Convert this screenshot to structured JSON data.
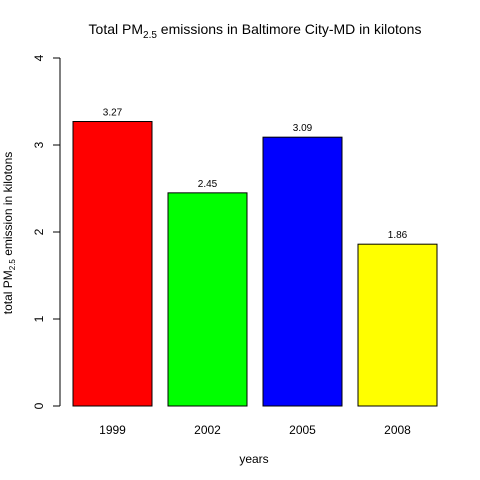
{
  "chart_data": {
    "type": "bar",
    "title": {
      "prefix": "Total PM",
      "subscript": "2.5",
      "suffix": " emissions in Baltimore City-MD in kilotons"
    },
    "xlabel": "years",
    "ylabel": {
      "prefix": "total PM",
      "subscript": "2.5",
      "suffix": " emission in kilotons"
    },
    "categories": [
      "1999",
      "2002",
      "2005",
      "2008"
    ],
    "values": [
      3.27,
      2.45,
      3.09,
      1.86
    ],
    "data_labels": [
      "3.27",
      "2.45",
      "3.09",
      "1.86"
    ],
    "colors": [
      "#ff0000",
      "#00ff00",
      "#0000ff",
      "#ffff00"
    ],
    "ylim": [
      0,
      4
    ],
    "yticks": [
      0,
      1,
      2,
      3,
      4
    ],
    "grid": false,
    "legend": "none"
  }
}
